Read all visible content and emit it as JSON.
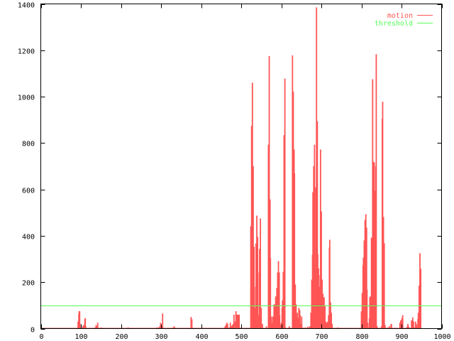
{
  "chart_data": {
    "type": "bar",
    "style": "impulses",
    "title": "",
    "xlabel": "",
    "ylabel": "",
    "xlim": [
      0,
      1000
    ],
    "ylim": [
      0,
      1400
    ],
    "xticks": [
      0,
      100,
      200,
      300,
      400,
      500,
      600,
      700,
      800,
      900,
      1000
    ],
    "yticks": [
      0,
      200,
      400,
      600,
      800,
      1000,
      1200,
      1400
    ],
    "grid": false,
    "legend_position": "top-right",
    "series": [
      {
        "name": "motion",
        "color": "#ff5555",
        "values": [
          [
            93,
            30
          ],
          [
            95,
            65
          ],
          [
            96,
            75
          ],
          [
            97,
            75
          ],
          [
            98,
            20
          ],
          [
            105,
            10
          ],
          [
            107,
            15
          ],
          [
            110,
            40
          ],
          [
            111,
            45
          ],
          [
            112,
            10
          ],
          [
            135,
            5
          ],
          [
            138,
            15
          ],
          [
            140,
            10
          ],
          [
            142,
            25
          ],
          [
            150,
            5
          ],
          [
            177,
            3
          ],
          [
            218,
            5
          ],
          [
            290,
            5
          ],
          [
            293,
            5
          ],
          [
            297,
            10
          ],
          [
            299,
            25
          ],
          [
            301,
            10
          ],
          [
            304,
            65
          ],
          [
            330,
            5
          ],
          [
            333,
            10
          ],
          [
            360,
            3
          ],
          [
            375,
            50
          ],
          [
            377,
            40
          ],
          [
            400,
            3
          ],
          [
            460,
            10
          ],
          [
            462,
            15
          ],
          [
            464,
            25
          ],
          [
            466,
            20
          ],
          [
            470,
            5
          ],
          [
            473,
            25
          ],
          [
            476,
            10
          ],
          [
            478,
            15
          ],
          [
            480,
            20
          ],
          [
            482,
            60
          ],
          [
            485,
            30
          ],
          [
            487,
            75
          ],
          [
            489,
            30
          ],
          [
            490,
            60
          ],
          [
            491,
            55
          ],
          [
            493,
            60
          ],
          [
            495,
            60
          ],
          [
            496,
            5
          ],
          [
            524,
            441
          ],
          [
            526,
            874
          ],
          [
            528,
            1060
          ],
          [
            530,
            700
          ],
          [
            532,
            353
          ],
          [
            534,
            89
          ],
          [
            536,
            180
          ],
          [
            537,
            367
          ],
          [
            539,
            487
          ],
          [
            541,
            395
          ],
          [
            543,
            58
          ],
          [
            545,
            242
          ],
          [
            546,
            343
          ],
          [
            548,
            475
          ],
          [
            550,
            89
          ],
          [
            552,
            5
          ],
          [
            553,
            20
          ],
          [
            563,
            10
          ],
          [
            568,
            793
          ],
          [
            570,
            1175
          ],
          [
            572,
            557
          ],
          [
            573,
            303
          ],
          [
            575,
            52
          ],
          [
            577,
            25
          ],
          [
            579,
            52
          ],
          [
            580,
            45
          ],
          [
            582,
            104
          ],
          [
            584,
            104
          ],
          [
            586,
            135
          ],
          [
            587,
            139
          ],
          [
            589,
            175
          ],
          [
            591,
            242
          ],
          [
            593,
            291
          ],
          [
            595,
            242
          ],
          [
            596,
            58
          ],
          [
            598,
            15
          ],
          [
            600,
            25
          ],
          [
            602,
            89
          ],
          [
            603,
            122
          ],
          [
            605,
            245
          ],
          [
            607,
            834
          ],
          [
            609,
            1078
          ],
          [
            610,
            5
          ],
          [
            620,
            10
          ],
          [
            628,
            1178
          ],
          [
            630,
            1022
          ],
          [
            632,
            772
          ],
          [
            633,
            670
          ],
          [
            635,
            190
          ],
          [
            637,
            104
          ],
          [
            639,
            52
          ],
          [
            640,
            68
          ],
          [
            642,
            45
          ],
          [
            644,
            89
          ],
          [
            646,
            80
          ],
          [
            647,
            58
          ],
          [
            649,
            20
          ],
          [
            651,
            52
          ],
          [
            653,
            5
          ],
          [
            660,
            5
          ],
          [
            666,
            8
          ],
          [
            671,
            10
          ],
          [
            674,
            68
          ],
          [
            676,
            211
          ],
          [
            678,
            318
          ],
          [
            679,
            588
          ],
          [
            681,
            700
          ],
          [
            683,
            793
          ],
          [
            684,
            260
          ],
          [
            686,
            609
          ],
          [
            688,
            1385
          ],
          [
            690,
            894
          ],
          [
            691,
            321
          ],
          [
            693,
            260
          ],
          [
            695,
            180
          ],
          [
            697,
            230
          ],
          [
            698,
            772
          ],
          [
            700,
            505
          ],
          [
            702,
            211
          ],
          [
            704,
            150
          ],
          [
            705,
            89
          ],
          [
            707,
            135
          ],
          [
            709,
            98
          ],
          [
            711,
            30
          ],
          [
            712,
            15
          ],
          [
            714,
            25
          ],
          [
            716,
            30
          ],
          [
            718,
            58
          ],
          [
            720,
            349
          ],
          [
            721,
            383
          ],
          [
            723,
            113
          ],
          [
            725,
            68
          ],
          [
            727,
            20
          ],
          [
            741,
            5
          ],
          [
            800,
            74
          ],
          [
            802,
            153
          ],
          [
            804,
            272
          ],
          [
            805,
            306
          ],
          [
            807,
            380
          ],
          [
            809,
            468
          ],
          [
            811,
            493
          ],
          [
            813,
            435
          ],
          [
            814,
            168
          ],
          [
            816,
            25
          ],
          [
            818,
            5
          ],
          [
            820,
            45
          ],
          [
            821,
            135
          ],
          [
            823,
            139
          ],
          [
            825,
            392
          ],
          [
            827,
            368
          ],
          [
            828,
            1075
          ],
          [
            830,
            720
          ],
          [
            832,
            716
          ],
          [
            834,
            594
          ],
          [
            836,
            700
          ],
          [
            837,
            1183
          ],
          [
            839,
            10
          ],
          [
            850,
            10
          ],
          [
            852,
            905
          ],
          [
            853,
            978
          ],
          [
            855,
            481
          ],
          [
            857,
            368
          ],
          [
            859,
            15
          ],
          [
            866,
            5
          ],
          [
            870,
            10
          ],
          [
            874,
            20
          ],
          [
            875,
            20
          ],
          [
            896,
            25
          ],
          [
            898,
            35
          ],
          [
            900,
            30
          ],
          [
            901,
            45
          ],
          [
            903,
            58
          ],
          [
            914,
            8
          ],
          [
            916,
            20
          ],
          [
            918,
            8
          ],
          [
            925,
            35
          ],
          [
            926,
            30
          ],
          [
            928,
            48
          ],
          [
            930,
            30
          ],
          [
            932,
            5
          ],
          [
            935,
            30
          ],
          [
            937,
            20
          ],
          [
            939,
            10
          ],
          [
            941,
            40
          ],
          [
            942,
            68
          ],
          [
            944,
            185
          ],
          [
            946,
            325
          ],
          [
            948,
            258
          ]
        ]
      },
      {
        "name": "threshold",
        "color": "#55ff55",
        "constant": 100
      }
    ]
  }
}
